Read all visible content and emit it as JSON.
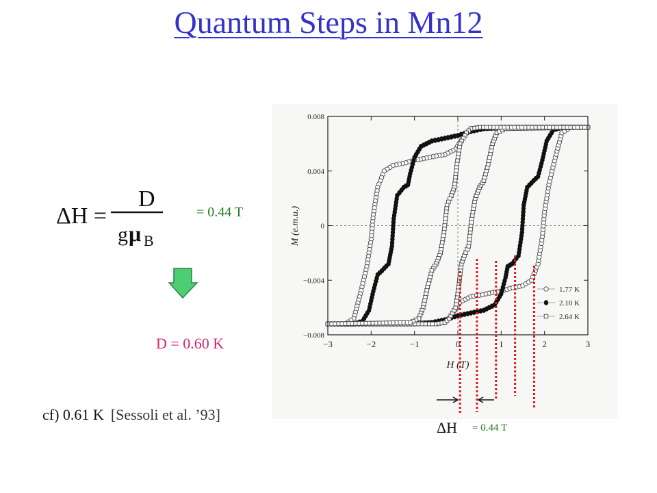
{
  "slide": {
    "title": "Quantum Steps in Mn12",
    "formula": {
      "lhs": "ΔH =",
      "numerator": "D",
      "denominator_g": "g",
      "denominator_mu": "μ",
      "denominator_sub": "B"
    },
    "delta_value": "= 0.44 T",
    "d_value": "D = 0.60 K",
    "cf_text": "cf) 0.61 K",
    "cf_ref": "[Sessoli et al. ’93]",
    "bottom_delta_label": "ΔH",
    "bottom_delta_value": "= 0.44 T"
  },
  "colors": {
    "title": "#3333cc",
    "green": "#1f7a1f",
    "pink": "#d6246e",
    "arrow_fill": "#4ccf73",
    "step_lines": "#e01a1a"
  },
  "chart_data": {
    "type": "scatter",
    "xlabel": "H (T)",
    "ylabel": "M (e.m.u.)",
    "xlim": [
      -3,
      3
    ],
    "ylim": [
      -0.008,
      0.008
    ],
    "xticks": [
      -3,
      -2,
      -1,
      0,
      1,
      2,
      3
    ],
    "yticks": [
      -0.008,
      -0.004,
      0,
      0.004,
      0.008
    ],
    "xtick_labels": [
      "−3",
      "−2",
      "−1",
      "0",
      "1",
      "2",
      "3"
    ],
    "ytick_labels": [
      "−0.008",
      "−0.004",
      "0",
      "0.004",
      "0.008"
    ],
    "legend_position": "lower-right",
    "series": [
      {
        "name": "1.77 K",
        "marker": "open-circle",
        "up": [
          [
            -3,
            -0.0072
          ],
          [
            -0.3,
            -0.0071
          ],
          [
            -0.15,
            -0.0066
          ],
          [
            0.05,
            -0.0056
          ],
          [
            0.3,
            -0.0052
          ],
          [
            0.5,
            -0.0051
          ],
          [
            0.8,
            -0.0049
          ],
          [
            1.0,
            -0.0048
          ],
          [
            1.2,
            -0.0046
          ],
          [
            1.5,
            -0.0044
          ],
          [
            1.7,
            -0.004
          ],
          [
            1.85,
            -0.0028
          ],
          [
            1.95,
            -0.0008
          ],
          [
            2.0,
            0.001
          ],
          [
            2.1,
            0.003
          ],
          [
            2.25,
            0.005
          ],
          [
            2.4,
            0.0068
          ],
          [
            2.6,
            0.0072
          ],
          [
            3,
            0.0072
          ]
        ],
        "down": [
          [
            3,
            0.0072
          ],
          [
            0.3,
            0.0071
          ],
          [
            0.15,
            0.0066
          ],
          [
            -0.05,
            0.0056
          ],
          [
            -0.3,
            0.0052
          ],
          [
            -0.5,
            0.0051
          ],
          [
            -0.8,
            0.0049
          ],
          [
            -1.0,
            0.0048
          ],
          [
            -1.2,
            0.0046
          ],
          [
            -1.5,
            0.0044
          ],
          [
            -1.7,
            0.004
          ],
          [
            -1.85,
            0.0028
          ],
          [
            -1.95,
            0.0008
          ],
          [
            -2.0,
            -0.001
          ],
          [
            -2.1,
            -0.003
          ],
          [
            -2.25,
            -0.005
          ],
          [
            -2.4,
            -0.0068
          ],
          [
            -2.6,
            -0.0072
          ],
          [
            -3,
            -0.0072
          ]
        ]
      },
      {
        "name": "2.10 K",
        "marker": "filled-circle",
        "up": [
          [
            -3,
            -0.0072
          ],
          [
            -1.0,
            -0.0072
          ],
          [
            -0.6,
            -0.0071
          ],
          [
            -0.3,
            -0.0069
          ],
          [
            0,
            -0.0066
          ],
          [
            0.3,
            -0.0064
          ],
          [
            0.6,
            -0.0062
          ],
          [
            0.85,
            -0.0058
          ],
          [
            1.0,
            -0.005
          ],
          [
            1.1,
            -0.0038
          ],
          [
            1.15,
            -0.003
          ],
          [
            1.25,
            -0.0028
          ],
          [
            1.4,
            -0.0022
          ],
          [
            1.48,
            -0.0005
          ],
          [
            1.52,
            0.0015
          ],
          [
            1.6,
            0.0028
          ],
          [
            1.75,
            0.0033
          ],
          [
            1.85,
            0.0036
          ],
          [
            1.95,
            0.0048
          ],
          [
            2.05,
            0.0062
          ],
          [
            2.2,
            0.007
          ],
          [
            2.4,
            0.0072
          ],
          [
            3,
            0.0072
          ]
        ],
        "down": [
          [
            3,
            0.0072
          ],
          [
            1.0,
            0.0072
          ],
          [
            0.6,
            0.0071
          ],
          [
            0.3,
            0.0069
          ],
          [
            0,
            0.0066
          ],
          [
            -0.3,
            0.0064
          ],
          [
            -0.6,
            0.0062
          ],
          [
            -0.85,
            0.0058
          ],
          [
            -1.0,
            0.005
          ],
          [
            -1.1,
            0.0038
          ],
          [
            -1.15,
            0.003
          ],
          [
            -1.25,
            0.0028
          ],
          [
            -1.4,
            0.0022
          ],
          [
            -1.48,
            0.0005
          ],
          [
            -1.52,
            -0.0015
          ],
          [
            -1.6,
            -0.0028
          ],
          [
            -1.75,
            -0.0033
          ],
          [
            -1.85,
            -0.0036
          ],
          [
            -1.95,
            -0.0048
          ],
          [
            -2.05,
            -0.0062
          ],
          [
            -2.2,
            -0.007
          ],
          [
            -2.4,
            -0.0072
          ],
          [
            -3,
            -0.0072
          ]
        ]
      },
      {
        "name": "2.64 K",
        "marker": "open-square",
        "up": [
          [
            -3,
            -0.0072
          ],
          [
            -0.5,
            -0.0072
          ],
          [
            -0.3,
            -0.0071
          ],
          [
            -0.2,
            -0.0068
          ],
          [
            -0.05,
            -0.006
          ],
          [
            0.02,
            -0.0045
          ],
          [
            0.08,
            -0.0028
          ],
          [
            0.15,
            -0.0022
          ],
          [
            0.25,
            -0.0015
          ],
          [
            0.32,
            0.0005
          ],
          [
            0.4,
            0.002
          ],
          [
            0.5,
            0.0028
          ],
          [
            0.6,
            0.0033
          ],
          [
            0.7,
            0.0045
          ],
          [
            0.8,
            0.006
          ],
          [
            0.9,
            0.0068
          ],
          [
            1.1,
            0.0071
          ],
          [
            3,
            0.0072
          ]
        ],
        "down": [
          [
            3,
            0.0072
          ],
          [
            0.5,
            0.0072
          ],
          [
            0.3,
            0.0071
          ],
          [
            0.2,
            0.0068
          ],
          [
            0.05,
            0.006
          ],
          [
            -0.02,
            0.0045
          ],
          [
            -0.08,
            0.0028
          ],
          [
            -0.15,
            0.0022
          ],
          [
            -0.25,
            0.0015
          ],
          [
            -0.32,
            -0.0005
          ],
          [
            -0.4,
            -0.002
          ],
          [
            -0.5,
            -0.0028
          ],
          [
            -0.6,
            -0.0033
          ],
          [
            -0.7,
            -0.0045
          ],
          [
            -0.8,
            -0.006
          ],
          [
            -0.9,
            -0.0068
          ],
          [
            -1.1,
            -0.0071
          ],
          [
            -3,
            -0.0072
          ]
        ]
      }
    ],
    "step_markers_H": [
      0.05,
      0.44,
      0.88,
      1.32,
      1.76
    ]
  }
}
